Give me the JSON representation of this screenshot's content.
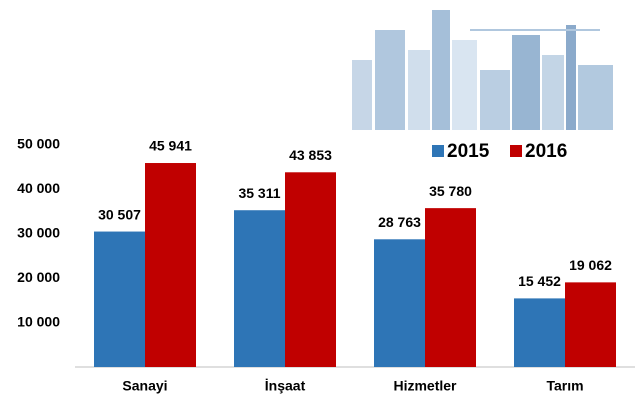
{
  "chart_data": {
    "type": "bar",
    "categories": [
      "Sanayi",
      "İnşaat",
      "Hizmetler",
      "Tarım"
    ],
    "series": [
      {
        "name": "2015",
        "color": "#2e75b6",
        "values": [
          30507,
          35311,
          28763,
          15452
        ],
        "value_labels": [
          "30 507",
          "35 311",
          "28 763",
          "15 452"
        ]
      },
      {
        "name": "2016",
        "color": "#c00000",
        "values": [
          45941,
          43853,
          35780,
          19062
        ],
        "value_labels": [
          "45 941",
          "43 853",
          "35 780",
          "19 062"
        ]
      }
    ],
    "ylim": [
      0,
      50000
    ],
    "yticks": [
      {
        "value": 10000,
        "label": "10 000"
      },
      {
        "value": 20000,
        "label": "20 000"
      },
      {
        "value": 30000,
        "label": "30 000"
      },
      {
        "value": 40000,
        "label": "40 000"
      },
      {
        "value": 50000,
        "label": "50 000"
      }
    ],
    "grid": false,
    "legend": "upper right"
  }
}
